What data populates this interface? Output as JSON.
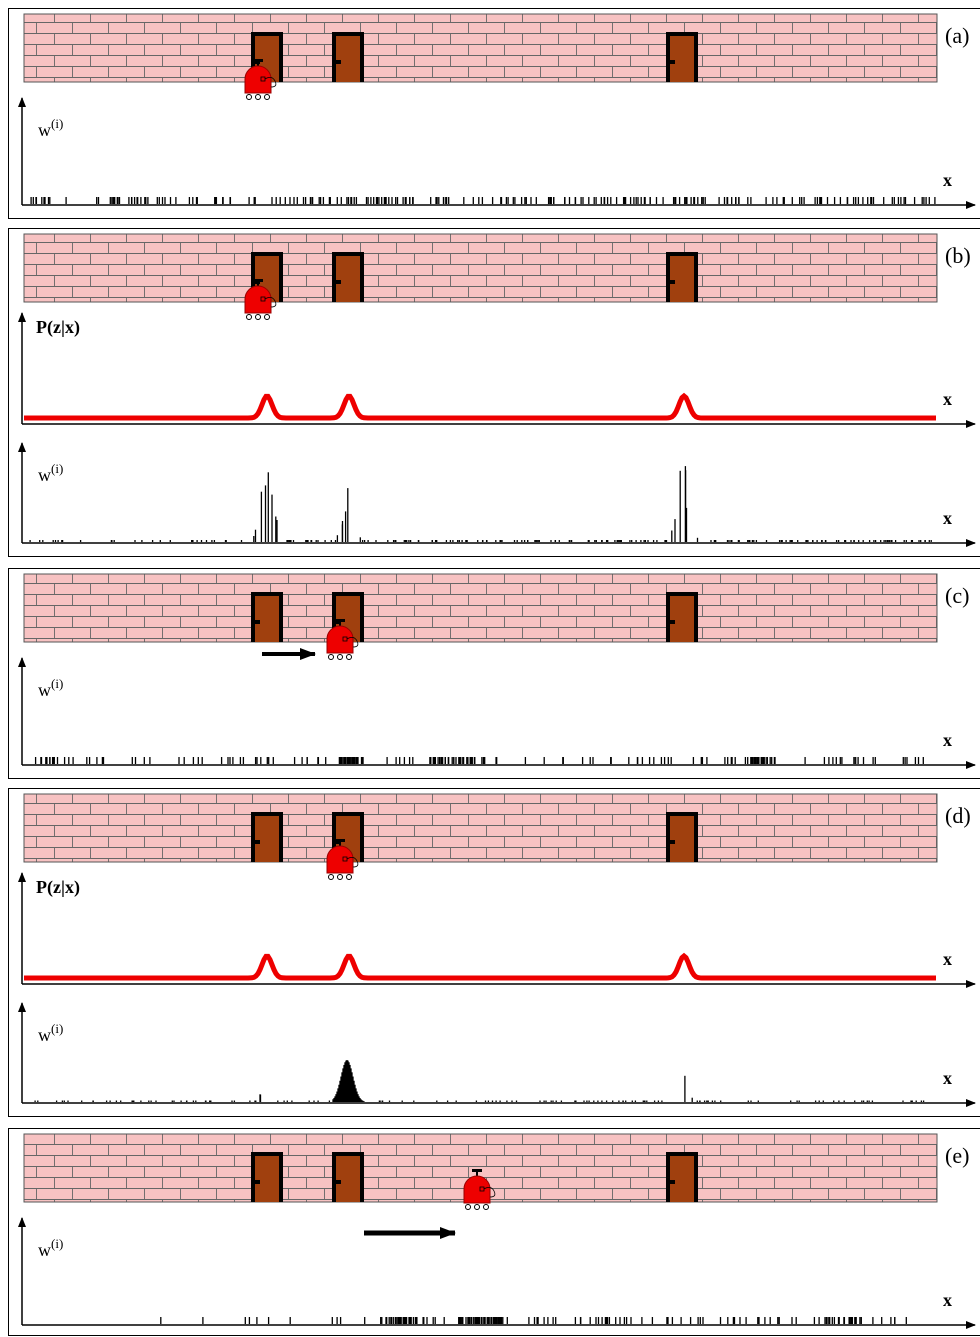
{
  "panels": [
    {
      "label": "(a)",
      "plots": [
        {
          "y_label": "w",
          "y_label_sup": "(i)",
          "x_label": "x"
        }
      ]
    },
    {
      "label": "(b)",
      "plots": [
        {
          "y_label": "P(z|x)",
          "x_label": "x"
        },
        {
          "y_label": "w",
          "y_label_sup": "(i)",
          "x_label": "x"
        }
      ]
    },
    {
      "label": "(c)",
      "plots": [
        {
          "y_label": "w",
          "y_label_sup": "(i)",
          "x_label": "x"
        }
      ]
    },
    {
      "label": "(d)",
      "plots": [
        {
          "y_label": "P(z|x)",
          "x_label": "x"
        },
        {
          "y_label": "w",
          "y_label_sup": "(i)",
          "x_label": "x"
        }
      ]
    },
    {
      "label": "(e)",
      "plots": [
        {
          "y_label": "w",
          "y_label_sup": "(i)",
          "x_label": "x"
        }
      ]
    }
  ]
}
